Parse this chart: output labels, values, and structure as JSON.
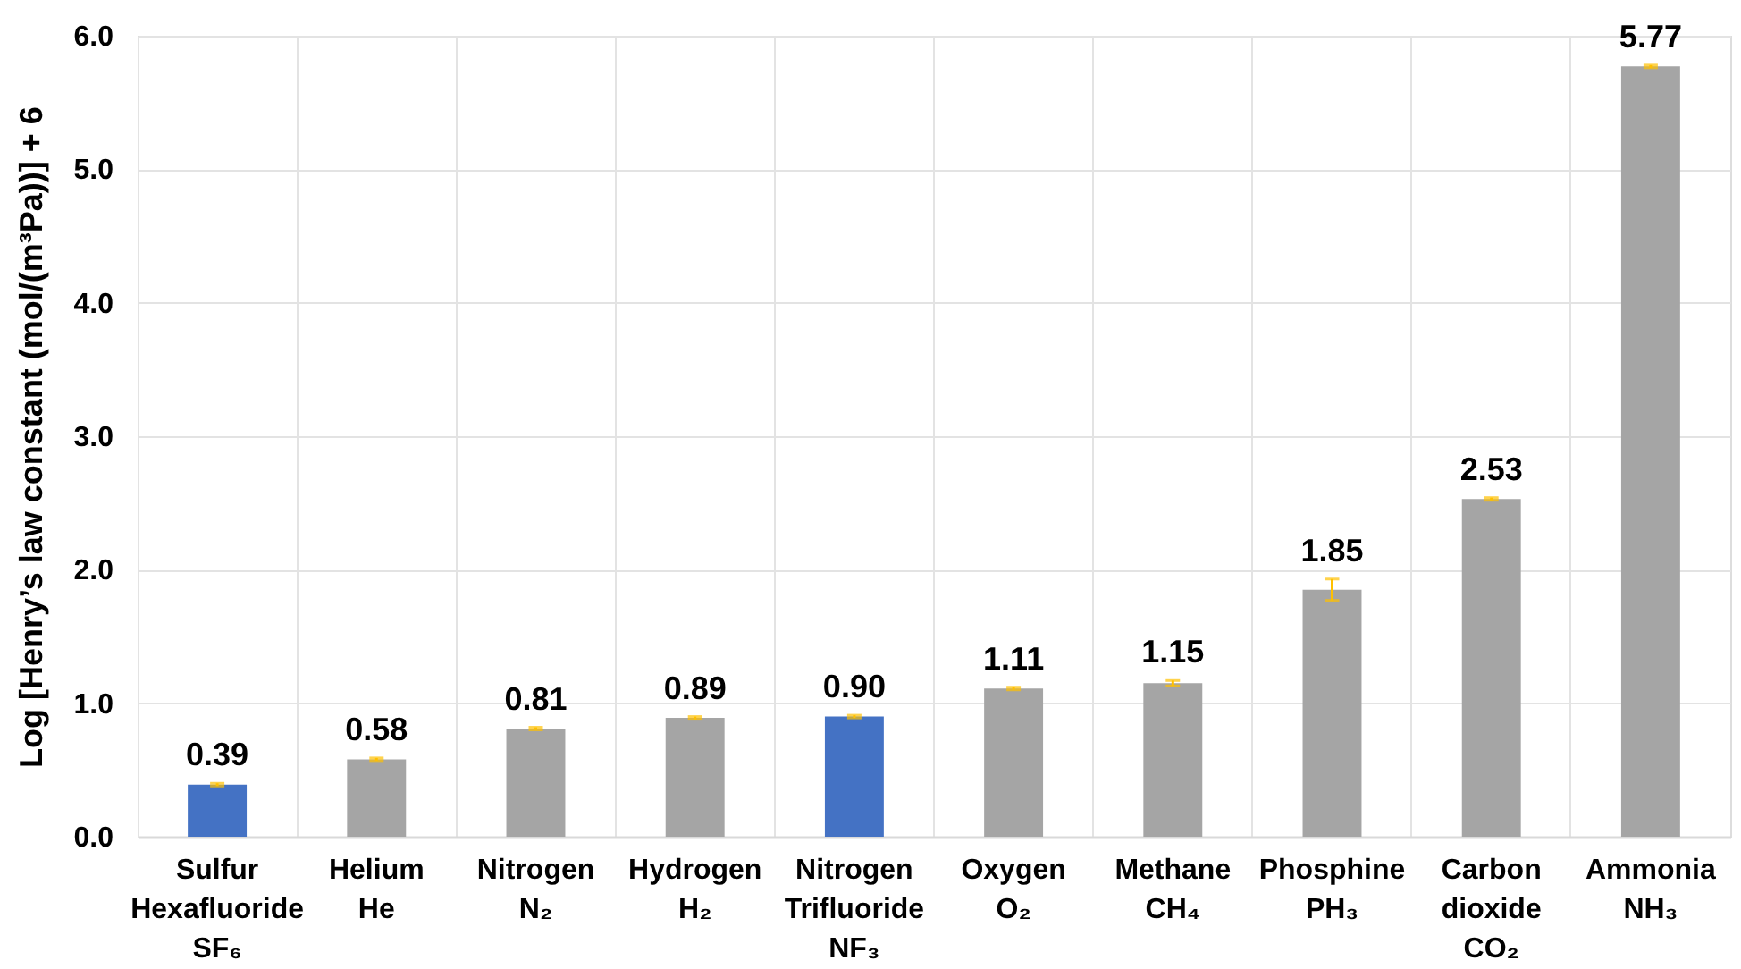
{
  "chart_data": {
    "type": "bar",
    "ylabel": "Log [Henry’s law constant (mol/(m³Pa))] + 6",
    "categories": [
      "Sulfur\nHexafluoride\nSF₆",
      "Helium\nHe",
      "Nitrogen\nN₂",
      "Hydrogen\nH₂",
      "Nitrogen\nTrifluoride\nNF₃",
      "Oxygen\nO₂",
      "Methane\nCH₄",
      "Phosphine\nPH₃",
      "Carbon\ndioxide\nCO₂",
      "Ammonia\nNH₃"
    ],
    "values": [
      0.39,
      0.58,
      0.81,
      0.89,
      0.9,
      1.11,
      1.15,
      1.85,
      2.53,
      5.77
    ],
    "colors": [
      "#4472c4",
      "#a5a5a5",
      "#a5a5a5",
      "#a5a5a5",
      "#4472c4",
      "#a5a5a5",
      "#a5a5a5",
      "#a5a5a5",
      "#a5a5a5",
      "#a5a5a5"
    ],
    "errors": [
      0.01,
      0.01,
      0.01,
      0.01,
      0.01,
      0.01,
      0.02,
      0.08,
      0.01,
      0.01
    ],
    "value_labels": [
      "0.39",
      "0.58",
      "0.81",
      "0.89",
      "0.90",
      "1.11",
      "1.15",
      "1.85",
      "2.53",
      "5.77"
    ],
    "ylim": [
      0,
      6
    ],
    "yticks": [
      {
        "value": 0,
        "label": "0.0"
      },
      {
        "value": 1,
        "label": "1.0"
      },
      {
        "value": 2,
        "label": "2.0"
      },
      {
        "value": 3,
        "label": "3.0"
      },
      {
        "value": 4,
        "label": "4.0"
      },
      {
        "value": 5,
        "label": "5.0"
      },
      {
        "value": 6,
        "label": "6.0"
      }
    ],
    "grid": true
  }
}
